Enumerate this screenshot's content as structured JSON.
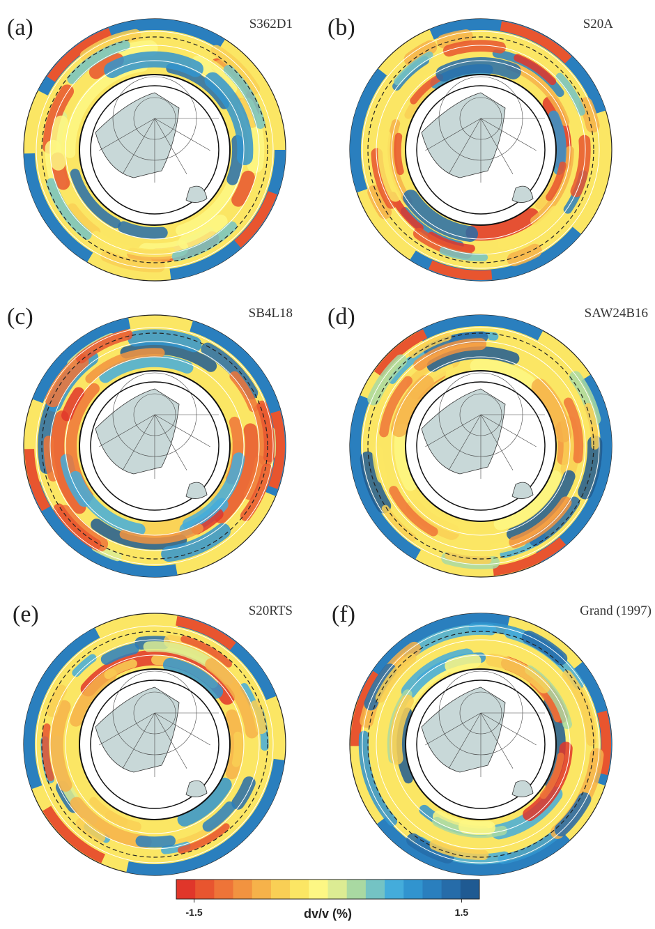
{
  "panels": [
    {
      "label": "(a)",
      "model": "S362D1"
    },
    {
      "label": "(b)",
      "model": "S20A"
    },
    {
      "label": "(c)",
      "model": "SB4L18"
    },
    {
      "label": "(d)",
      "model": "SAW24B16"
    },
    {
      "label": "(e)",
      "model": "S20RTS"
    },
    {
      "label": "(f)",
      "model": "Grand (1997)"
    }
  ],
  "colorbar": {
    "label": "dv/v (%)",
    "lim": [
      -1.7,
      1.7
    ],
    "ticks": [
      -1.5,
      1.5
    ],
    "colors": [
      "#e0362a",
      "#e8552f",
      "#ee7438",
      "#f29340",
      "#f6b24a",
      "#f9cf55",
      "#fbe664",
      "#fdf784",
      "#dcec93",
      "#a9d9a2",
      "#74c3c4",
      "#44acdb",
      "#3194cf",
      "#2a7fbe",
      "#266ca9",
      "#1f5a92"
    ]
  }
}
